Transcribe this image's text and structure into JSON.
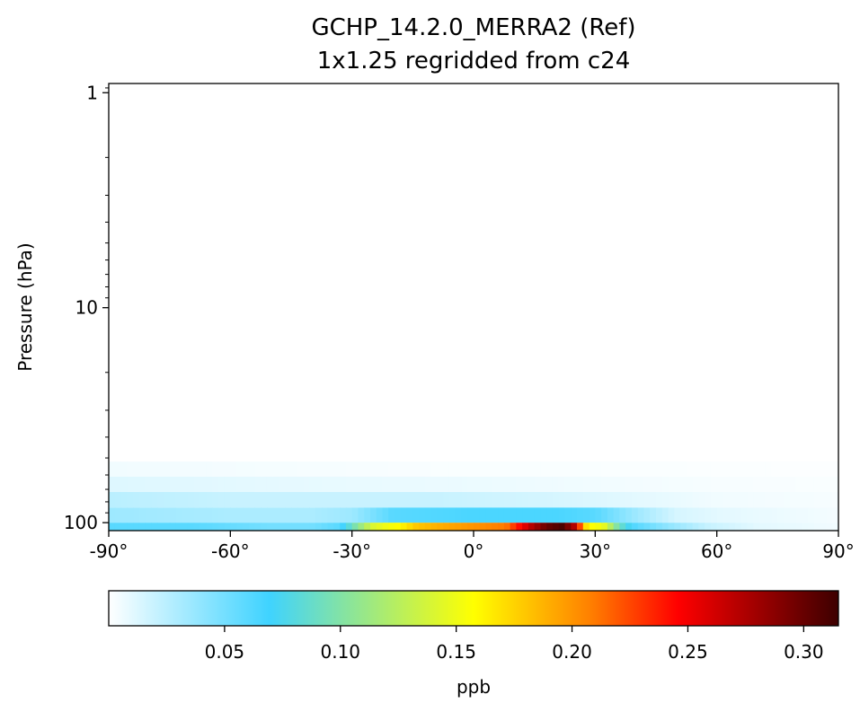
{
  "chart_data": {
    "type": "heatmap",
    "title": "GCHP_14.2.0_MERRA2 (Ref)",
    "subtitle": "1x1.25 regridded from c24",
    "xlabel": "",
    "ylabel": "Pressure (hPa)",
    "xlim": [
      -90,
      90
    ],
    "ylim": [
      1,
      100
    ],
    "yscale": "log",
    "y_inverted": true,
    "x_ticks": [
      -90,
      -60,
      -30,
      0,
      30,
      60,
      90
    ],
    "x_tick_labels": [
      "-90°",
      "-60°",
      "-30°",
      "0°",
      "30°",
      "60°",
      "90°"
    ],
    "y_ticks": [
      1,
      10,
      100
    ],
    "y_tick_labels": [
      "1",
      "10",
      "100"
    ],
    "colorbar": {
      "label": "ppb",
      "range": [
        0.0,
        0.315
      ],
      "ticks": [
        0.05,
        0.1,
        0.15,
        0.2,
        0.25,
        0.3
      ],
      "tick_labels": [
        "0.05",
        "0.10",
        "0.15",
        "0.20",
        "0.25",
        "0.30"
      ],
      "colormap": [
        "#ffffff",
        "#3fd3ff",
        "#ffff00",
        "#ff8000",
        "#ff0000",
        "#3d0000"
      ]
    },
    "levels": [
      {
        "pressure_top": 100,
        "pressure_bottom": 115,
        "segments": [
          {
            "lat": -90,
            "value": 0.06
          },
          {
            "lat": -70,
            "value": 0.06
          },
          {
            "lat": -50,
            "value": 0.05
          },
          {
            "lat": -40,
            "value": 0.05
          },
          {
            "lat": -33,
            "value": 0.06
          },
          {
            "lat": -28,
            "value": 0.11
          },
          {
            "lat": -25,
            "value": 0.14
          },
          {
            "lat": -22,
            "value": 0.15
          },
          {
            "lat": -18,
            "value": 0.16
          },
          {
            "lat": -14,
            "value": 0.18
          },
          {
            "lat": -8,
            "value": 0.19
          },
          {
            "lat": 0,
            "value": 0.2
          },
          {
            "lat": 8,
            "value": 0.21
          },
          {
            "lat": 14,
            "value": 0.27
          },
          {
            "lat": 18,
            "value": 0.3
          },
          {
            "lat": 22,
            "value": 0.31
          },
          {
            "lat": 25,
            "value": 0.27
          },
          {
            "lat": 28,
            "value": 0.16
          },
          {
            "lat": 32,
            "value": 0.15
          },
          {
            "lat": 36,
            "value": 0.09
          },
          {
            "lat": 40,
            "value": 0.06
          },
          {
            "lat": 48,
            "value": 0.04
          },
          {
            "lat": 58,
            "value": 0.02
          },
          {
            "lat": 70,
            "value": 0.01
          },
          {
            "lat": 90,
            "value": 0.005
          }
        ]
      },
      {
        "pressure_top": 85,
        "pressure_bottom": 100,
        "segments": [
          {
            "lat": -90,
            "value": 0.035
          },
          {
            "lat": -60,
            "value": 0.03
          },
          {
            "lat": -40,
            "value": 0.03
          },
          {
            "lat": -30,
            "value": 0.035
          },
          {
            "lat": -20,
            "value": 0.06
          },
          {
            "lat": 0,
            "value": 0.065
          },
          {
            "lat": 20,
            "value": 0.065
          },
          {
            "lat": 30,
            "value": 0.06
          },
          {
            "lat": 40,
            "value": 0.035
          },
          {
            "lat": 50,
            "value": 0.015
          },
          {
            "lat": 60,
            "value": 0.01
          },
          {
            "lat": 90,
            "value": 0.004
          }
        ]
      },
      {
        "pressure_top": 72,
        "pressure_bottom": 85,
        "segments": [
          {
            "lat": -90,
            "value": 0.025
          },
          {
            "lat": -60,
            "value": 0.02
          },
          {
            "lat": -30,
            "value": 0.02
          },
          {
            "lat": -10,
            "value": 0.02
          },
          {
            "lat": 20,
            "value": 0.015
          },
          {
            "lat": 40,
            "value": 0.01
          },
          {
            "lat": 60,
            "value": 0.005
          },
          {
            "lat": 90,
            "value": 0.003
          }
        ]
      },
      {
        "pressure_top": 61,
        "pressure_bottom": 72,
        "segments": [
          {
            "lat": -90,
            "value": 0.012
          },
          {
            "lat": -60,
            "value": 0.01
          },
          {
            "lat": -30,
            "value": 0.008
          },
          {
            "lat": 0,
            "value": 0.007
          },
          {
            "lat": 30,
            "value": 0.005
          },
          {
            "lat": 60,
            "value": 0.003
          },
          {
            "lat": 90,
            "value": 0.002
          }
        ]
      },
      {
        "pressure_top": 52,
        "pressure_bottom": 61,
        "segments": [
          {
            "lat": -90,
            "value": 0.005
          },
          {
            "lat": -60,
            "value": 0.004
          },
          {
            "lat": -30,
            "value": 0.003
          },
          {
            "lat": 0,
            "value": 0.002
          },
          {
            "lat": 30,
            "value": 0.002
          },
          {
            "lat": 90,
            "value": 0.001
          }
        ]
      }
    ]
  }
}
